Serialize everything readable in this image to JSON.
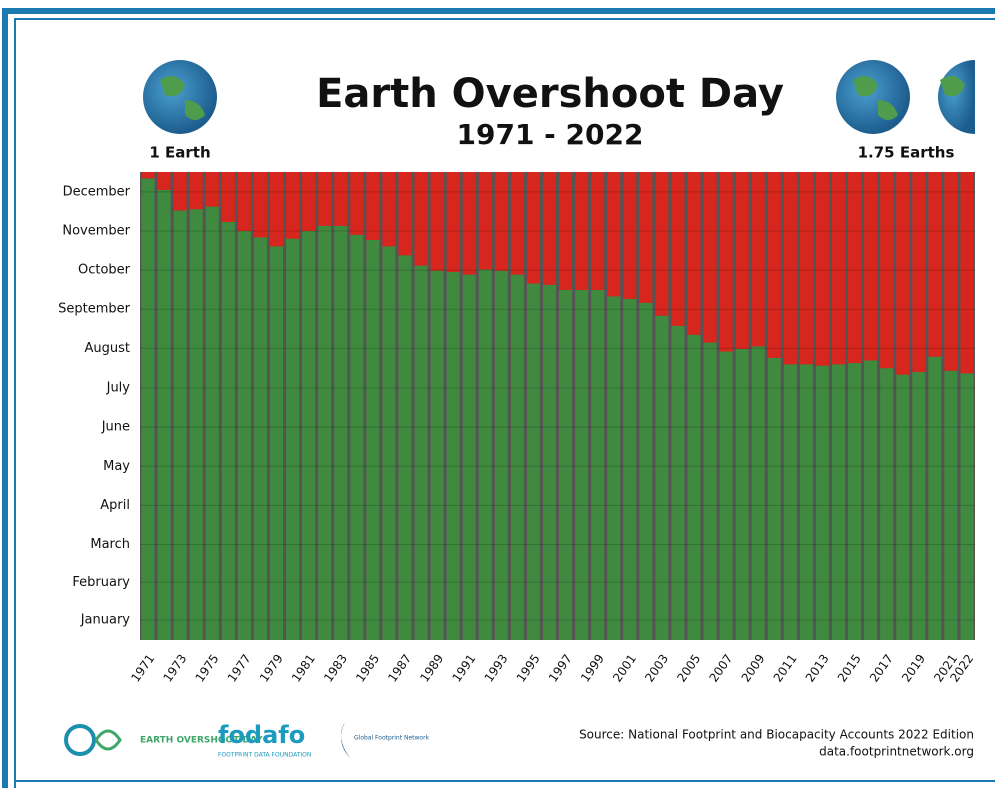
{
  "chart_data": {
    "type": "stacked-bar",
    "title": "Earth Overshoot Day",
    "subtitle": "1971 - 2022",
    "annotations": {
      "left_globe": "1 Earth",
      "right_globe": "1.75 Earths",
      "source": "Source: National Footprint and Biocapacity Accounts 2022 Edition",
      "url": "data.footprintnetwork.org",
      "logo1": "EARTH OVERSHOOT DAY",
      "logo2": "fodafo",
      "logo2_sub": "FOOTPRINT DATA FOUNDATION",
      "logo3": "Global Footprint Network"
    },
    "categories": [
      "1971",
      null,
      "1973",
      null,
      "1975",
      null,
      "1977",
      null,
      "1979",
      null,
      "1981",
      null,
      "1983",
      null,
      "1985",
      null,
      "1987",
      null,
      "1989",
      null,
      "1991",
      null,
      "1993",
      null,
      "1995",
      null,
      "1997",
      null,
      "1999",
      null,
      "2001",
      null,
      "2003",
      null,
      "2005",
      null,
      "2007",
      null,
      "2009",
      null,
      "2011",
      null,
      "2013",
      null,
      "2015",
      null,
      "2017",
      null,
      "2019",
      null,
      "2021",
      "2022"
    ],
    "series": [
      {
        "color": "#3f8a3f",
        "values": [
          360,
          351,
          335,
          336,
          338,
          326,
          319,
          314,
          307,
          313,
          319,
          323,
          323,
          316,
          312,
          307,
          300,
          292,
          288,
          287,
          285,
          289,
          288,
          285,
          278,
          277,
          273,
          273,
          273,
          268,
          266,
          263,
          253,
          245,
          238,
          232,
          225,
          227,
          229,
          220,
          215,
          215,
          214,
          215,
          216,
          218,
          212,
          207,
          209,
          221,
          210,
          208
        ]
      },
      {
        "color": "#d7261e",
        "values": [
          5,
          14,
          30,
          29,
          27,
          39,
          46,
          51,
          58,
          52,
          46,
          42,
          42,
          49,
          53,
          58,
          65,
          73,
          77,
          78,
          80,
          76,
          77,
          80,
          87,
          88,
          92,
          92,
          92,
          97,
          99,
          102,
          112,
          120,
          127,
          133,
          140,
          138,
          136,
          145,
          150,
          150,
          151,
          150,
          149,
          147,
          153,
          158,
          156,
          144,
          155,
          157
        ]
      }
    ],
    "ylim": [
      0,
      365
    ],
    "yticks": [
      {
        "value": 15.5,
        "label": "January"
      },
      {
        "value": 45,
        "label": "February"
      },
      {
        "value": 74.5,
        "label": "March"
      },
      {
        "value": 105,
        "label": "April"
      },
      {
        "value": 135.5,
        "label": "May"
      },
      {
        "value": 166,
        "label": "June"
      },
      {
        "value": 196.5,
        "label": "July"
      },
      {
        "value": 227.5,
        "label": "August"
      },
      {
        "value": 258,
        "label": "September"
      },
      {
        "value": 288.5,
        "label": "October"
      },
      {
        "value": 319,
        "label": "November"
      },
      {
        "value": 349.5,
        "label": "December"
      }
    ],
    "grid": true
  }
}
